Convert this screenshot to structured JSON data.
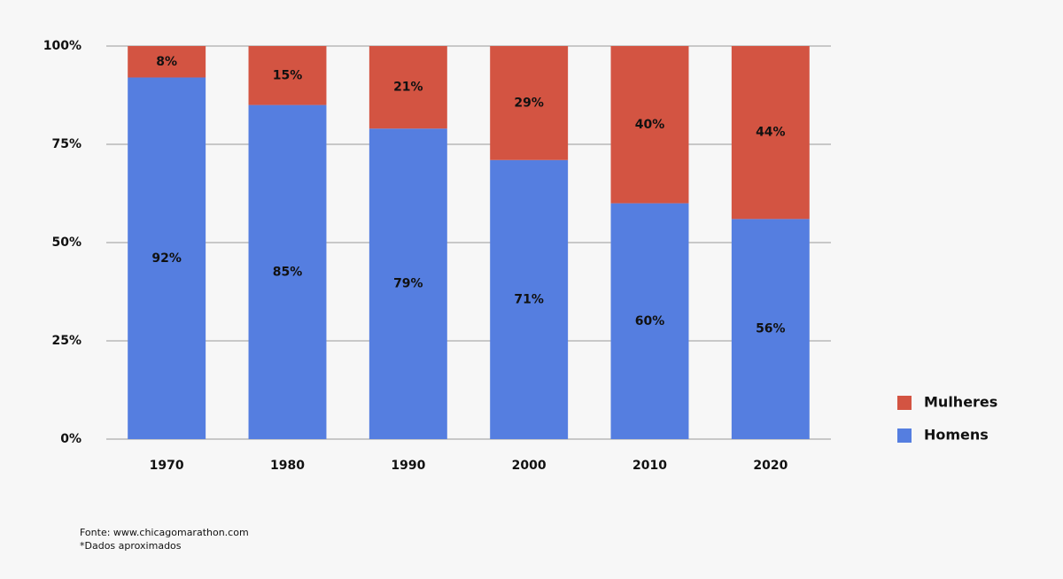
{
  "chart_data": {
    "type": "stacked_bar",
    "categories": [
      "1970",
      "1980",
      "1990",
      "2000",
      "2010",
      "2020"
    ],
    "series": [
      {
        "name": "Homens",
        "color": "#557ee0",
        "values": [
          92,
          85,
          79,
          71,
          60,
          56
        ],
        "value_labels": [
          "92%",
          "85%",
          "79%",
          "71%",
          "60%",
          "56%"
        ]
      },
      {
        "name": "Mulheres",
        "color": "#d35442",
        "values": [
          8,
          15,
          21,
          29,
          40,
          44
        ],
        "value_labels": [
          "8%",
          "15%",
          "21%",
          "29%",
          "40%",
          "44%"
        ]
      }
    ],
    "ylim": [
      0,
      100
    ],
    "yticks": [
      {
        "value": 0,
        "label": "0%"
      },
      {
        "value": 25,
        "label": "25%"
      },
      {
        "value": 50,
        "label": "50%"
      },
      {
        "value": 75,
        "label": "75%"
      },
      {
        "value": 100,
        "label": "100%"
      }
    ],
    "grid": true,
    "legend": "right",
    "source": "Fonte: www.chicagomarathon.com",
    "note": "*Dados aproximados"
  }
}
